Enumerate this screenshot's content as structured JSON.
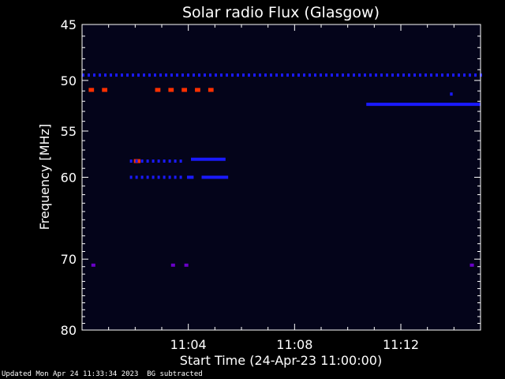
{
  "chart_data": {
    "type": "heatmap",
    "title": "Solar radio Flux (Glasgow)",
    "xlabel": "Start Time (24-Apr-23 11:00:00)",
    "ylabel": "Frequency [MHz]",
    "x_unit": "minutes after 11:00:00",
    "xlim": [
      0,
      15
    ],
    "ylim": [
      45,
      80
    ],
    "y_scale": "log",
    "x_ticks": [
      {
        "value": 4,
        "label": "11:04"
      },
      {
        "value": 8,
        "label": "11:08"
      },
      {
        "value": 12,
        "label": "11:12"
      }
    ],
    "y_ticks": [
      {
        "value": 45,
        "label": "45"
      },
      {
        "value": 50,
        "label": "50"
      },
      {
        "value": 55,
        "label": "55"
      },
      {
        "value": 60,
        "label": "60"
      },
      {
        "value": 70,
        "label": "70"
      },
      {
        "value": 80,
        "label": "80"
      }
    ],
    "background_color": "#04041a",
    "colors": {
      "weak": "#1a1aff",
      "medium": "#6a00c8",
      "strong": "#ff3000"
    },
    "bursts": [
      {
        "t0": 0.0,
        "t1": 15.0,
        "f": 49.5,
        "level": "weak",
        "dashed": true
      },
      {
        "t0": 10.7,
        "t1": 15.0,
        "f": 52.3,
        "level": "weak"
      },
      {
        "t0": 0.25,
        "t1": 0.45,
        "f": 50.9,
        "level": "strong"
      },
      {
        "t0": 0.75,
        "t1": 0.95,
        "f": 50.9,
        "level": "strong"
      },
      {
        "t0": 2.75,
        "t1": 2.95,
        "f": 50.9,
        "level": "strong"
      },
      {
        "t0": 3.25,
        "t1": 3.45,
        "f": 50.9,
        "level": "strong"
      },
      {
        "t0": 3.75,
        "t1": 3.95,
        "f": 50.9,
        "level": "strong"
      },
      {
        "t0": 4.25,
        "t1": 4.45,
        "f": 50.9,
        "level": "strong"
      },
      {
        "t0": 4.75,
        "t1": 4.95,
        "f": 50.9,
        "level": "strong"
      },
      {
        "t0": 1.95,
        "t1": 2.2,
        "f": 58.2,
        "level": "strong"
      },
      {
        "t0": 1.8,
        "t1": 3.8,
        "f": 58.2,
        "level": "weak",
        "dashed": true
      },
      {
        "t0": 4.1,
        "t1": 5.4,
        "f": 58.0,
        "level": "weak"
      },
      {
        "t0": 1.8,
        "t1": 3.8,
        "f": 60.0,
        "level": "weak",
        "dashed": true
      },
      {
        "t0": 3.95,
        "t1": 4.2,
        "f": 60.0,
        "level": "weak"
      },
      {
        "t0": 4.5,
        "t1": 5.5,
        "f": 60.0,
        "level": "weak"
      },
      {
        "t0": 0.35,
        "t1": 0.5,
        "f": 70.8,
        "level": "medium"
      },
      {
        "t0": 3.35,
        "t1": 3.5,
        "f": 70.8,
        "level": "medium"
      },
      {
        "t0": 3.85,
        "t1": 4.0,
        "f": 70.8,
        "level": "medium"
      },
      {
        "t0": 14.6,
        "t1": 14.75,
        "f": 70.8,
        "level": "medium"
      },
      {
        "t0": 13.85,
        "t1": 13.95,
        "f": 51.3,
        "level": "weak"
      }
    ]
  },
  "footer": {
    "updated": "Updated Mon Apr 24 11:33:34 2023",
    "note": "BG subtracted"
  }
}
